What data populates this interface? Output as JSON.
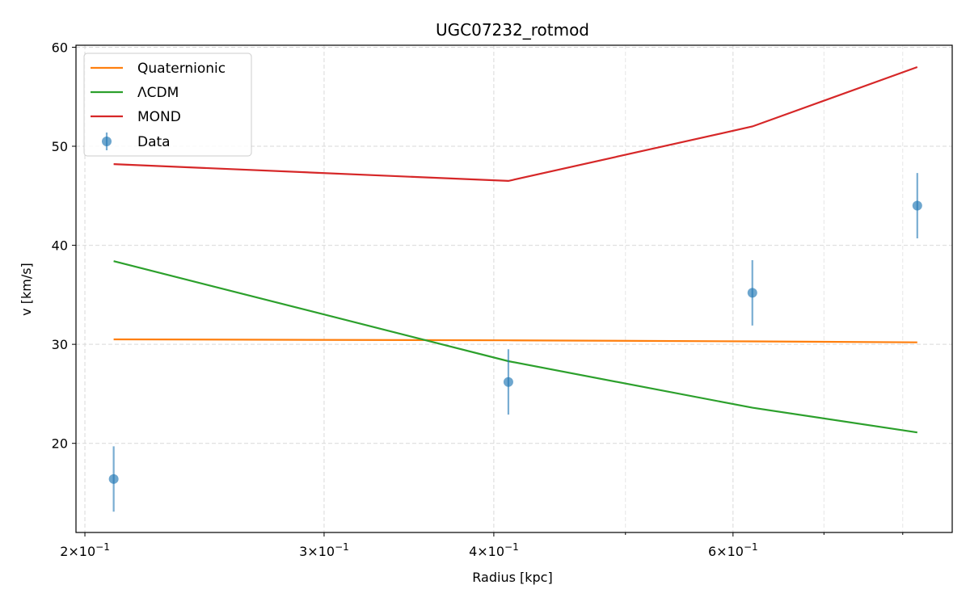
{
  "chart_data": {
    "type": "line",
    "title": "UGC07232_rotmod",
    "xlabel": "Radius [kpc]",
    "ylabel": "v [km/s]",
    "xscale": "log",
    "xlim": [
      0.197,
      0.87
    ],
    "ylim": [
      11,
      60.2
    ],
    "grid": true,
    "legend_position": "top-left",
    "x_ticks": [
      {
        "value": 0.2,
        "mantissa": "2",
        "exponent": "−1"
      },
      {
        "value": 0.3,
        "mantissa": "3",
        "exponent": "−1"
      },
      {
        "value": 0.4,
        "mantissa": "4",
        "exponent": "−1"
      },
      {
        "value": 0.6,
        "mantissa": "6",
        "exponent": "−1"
      }
    ],
    "x_minor_ticks": [
      0.5,
      0.7,
      0.8
    ],
    "y_ticks": [
      20,
      30,
      40,
      50,
      60
    ],
    "series": [
      {
        "name": "Quaternionic",
        "color": "#ff7f0e",
        "x": [
          0.21,
          0.41,
          0.62,
          0.82
        ],
        "y": [
          30.5,
          30.4,
          30.3,
          30.2
        ]
      },
      {
        "name": "ΛCDM",
        "color": "#2ca02c",
        "x": [
          0.21,
          0.41,
          0.62,
          0.82
        ],
        "y": [
          38.4,
          28.3,
          23.6,
          21.1
        ]
      },
      {
        "name": "MOND",
        "color": "#d62728",
        "x": [
          0.21,
          0.41,
          0.62,
          0.82
        ],
        "y": [
          48.2,
          46.5,
          52.0,
          58.0
        ]
      }
    ],
    "data_points": {
      "name": "Data",
      "color": "#1f77b4",
      "x": [
        0.21,
        0.41,
        0.62,
        0.82
      ],
      "y": [
        16.4,
        26.2,
        35.2,
        44.0
      ],
      "yerr": [
        3.3,
        3.3,
        3.3,
        3.3
      ]
    }
  }
}
